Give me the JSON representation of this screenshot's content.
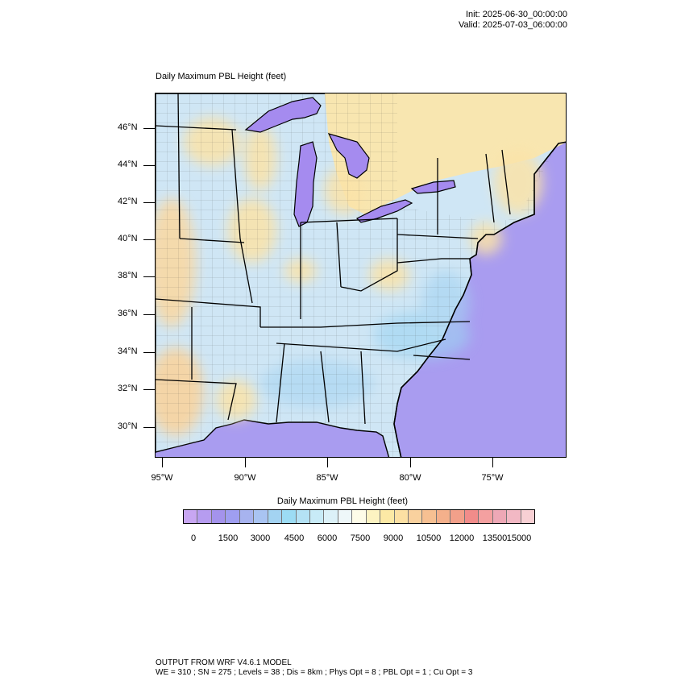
{
  "header": {
    "init": "Init: 2025-06-30_00:00:00",
    "valid": "Valid: 2025-07-03_06:00:00"
  },
  "plot": {
    "title": "Daily Maximum PBL Height   (feet)"
  },
  "axes": {
    "lat_labels": [
      "46°N",
      "44°N",
      "42°N",
      "40°N",
      "38°N",
      "36°N",
      "34°N",
      "32°N",
      "30°N"
    ],
    "lon_labels": [
      "95°W",
      "90°W",
      "85°W",
      "80°W",
      "75°W"
    ]
  },
  "colorbar": {
    "title": "Daily Maximum PBL Height  (feet)",
    "tick_labels": [
      "0",
      "1500",
      "3000",
      "4500",
      "6000",
      "7500",
      "9000",
      "10500",
      "12000",
      "13500",
      "15000"
    ],
    "colors": [
      "#c8a6f2",
      "#b69cf0",
      "#a493ec",
      "#9f9ef0",
      "#a7b3ef",
      "#a9c4f2",
      "#a3d3f2",
      "#9cdcf4",
      "#b4e2f5",
      "#c8ebf7",
      "#dcf1f8",
      "#eef7f9",
      "#fefce8",
      "#fdf3c2",
      "#fce9a5",
      "#fce0a3",
      "#f9d19e",
      "#f6c092",
      "#f4b08b",
      "#f2a08a",
      "#f18c8a",
      "#f4a0a0",
      "#eea8b6",
      "#f2b8c4",
      "#f8d0d4"
    ]
  },
  "footer": {
    "line1": "OUTPUT FROM WRF V4.6.1 MODEL",
    "line2": "WE = 310 ; SN = 275 ; Levels = 38 ; Dis = 8km ; Phys Opt = 8 ; PBL Opt = 1 ; Cu Opt = 3"
  },
  "map": {
    "ocean_color": "#a99cf0",
    "lake_color": "#a58bef",
    "land_base_color": "#cfe6f5",
    "warm_color": "#fbe3a8",
    "canada_color": "#f8e6b0"
  }
}
